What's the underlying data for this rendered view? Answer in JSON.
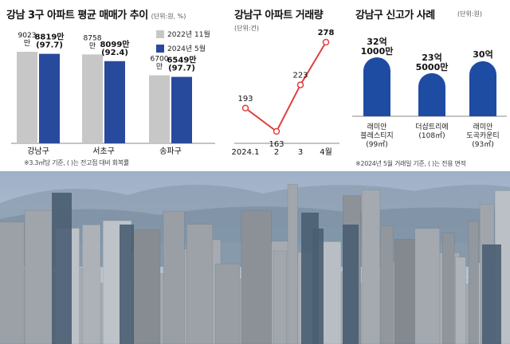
{
  "colors": {
    "gray_bar": "#c7c7c8",
    "blue_bar": "#284a9d",
    "line_red": "#e0403e",
    "pill_blue": "#1f4ca3"
  },
  "panel1": {
    "title": "강남 3구 아파트 평균 매매가 추이",
    "unit": "(단위:원, %)",
    "legend": [
      "2022년 11월",
      "2024년 5월"
    ],
    "note": "※3.3㎡당 기준, (  )는 전고점 대비 회복률"
  },
  "panel2": {
    "title": "강남구 아파트 거래량",
    "unit": "(단위:건)"
  },
  "panel3": {
    "title": "강남구 신고가 사례",
    "unit": "(단위:원)",
    "note": "※2024년 5월 거래일 기준, (  )는 전용 면적"
  },
  "chart_data": [
    {
      "type": "bar",
      "title": "강남 3구 아파트 평균 매매가 추이",
      "categories": [
        "강남구",
        "서초구",
        "송파구"
      ],
      "series": [
        {
          "name": "2022년 11월",
          "values": [
            9023,
            8758,
            6700
          ],
          "labels": [
            "9023\n만",
            "8758\n만",
            "6700\n만"
          ]
        },
        {
          "name": "2024년 5월",
          "values": [
            8819,
            8099,
            6549
          ],
          "labels": [
            "8819만\n(97.7)",
            "8099만\n(92.4)",
            "6549만\n(97.7)"
          ]
        }
      ],
      "legend_position": "top-right"
    },
    {
      "type": "line",
      "title": "강남구 아파트 거래량",
      "x": [
        "2024.1",
        "2",
        "3",
        "4월"
      ],
      "values": [
        193,
        163,
        223,
        278
      ]
    },
    {
      "type": "bar",
      "title": "강남구 신고가 사례",
      "categories": [
        "래미안\n블레스티지\n(99㎡)",
        "더샵트리에\n(108㎡)",
        "래미안\n도곡카운티\n(93㎡)"
      ],
      "values": [
        321000,
        235000,
        300000
      ],
      "value_labels": [
        "32억\n1000만",
        "23억\n5000만",
        "30억"
      ]
    }
  ]
}
